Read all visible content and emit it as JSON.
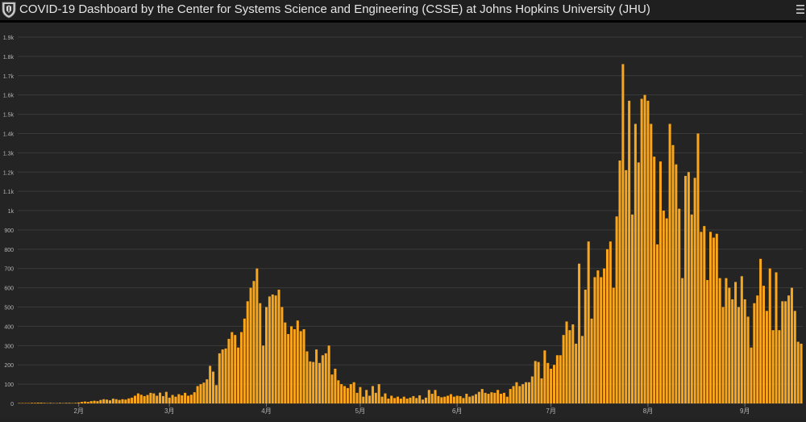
{
  "header": {
    "title": "COVID-19 Dashboard by the Center for Systems Science and Engineering (CSSE) at Johns Hopkins University (JHU)"
  },
  "colors": {
    "bar": "#f9a61c",
    "grid": "#3a3a3a",
    "axis_text": "#b5b5b5",
    "background": "#242424"
  },
  "chart_data": {
    "type": "bar",
    "grid": true,
    "ylim": [
      0,
      1900
    ],
    "y_ticks": [
      0,
      100,
      200,
      300,
      400,
      500,
      600,
      700,
      800,
      900,
      1000,
      1100,
      1200,
      1300,
      1400,
      1500,
      1600,
      1700,
      1800,
      1900
    ],
    "y_tick_labels": [
      "0",
      "100",
      "200",
      "300",
      "400",
      "500",
      "600",
      "700",
      "800",
      "900",
      "1k",
      "1.1k",
      "1.2k",
      "1.3k",
      "1.4k",
      "1.5k",
      "1.6k",
      "1.7k",
      "1.8k",
      "1.9k"
    ],
    "x_tick_labels": [
      {
        "label": "2月",
        "day": 19
      },
      {
        "label": "3月",
        "day": 48
      },
      {
        "label": "4月",
        "day": 79
      },
      {
        "label": "5月",
        "day": 109
      },
      {
        "label": "6月",
        "day": 140
      },
      {
        "label": "7月",
        "day": 170
      },
      {
        "label": "8月",
        "day": 201
      },
      {
        "label": "9月",
        "day": 232
      }
    ],
    "values": [
      2,
      2,
      2,
      2,
      3,
      3,
      4,
      4,
      3,
      2,
      3,
      2,
      2,
      3,
      2,
      3,
      3,
      2,
      3,
      5,
      8,
      10,
      8,
      12,
      14,
      12,
      18,
      22,
      20,
      16,
      25,
      22,
      18,
      22,
      20,
      26,
      30,
      40,
      52,
      45,
      38,
      44,
      55,
      52,
      40,
      56,
      38,
      60,
      30,
      44,
      35,
      48,
      42,
      55,
      40,
      45,
      58,
      90,
      100,
      108,
      125,
      195,
      165,
      95,
      260,
      280,
      285,
      335,
      370,
      355,
      290,
      370,
      440,
      530,
      600,
      635,
      700,
      520,
      300,
      500,
      555,
      565,
      560,
      590,
      500,
      420,
      360,
      400,
      385,
      430,
      375,
      385,
      270,
      218,
      215,
      280,
      210,
      250,
      260,
      300,
      150,
      180,
      120,
      100,
      90,
      80,
      100,
      110,
      55,
      85,
      35,
      70,
      40,
      90,
      55,
      100,
      35,
      52,
      25,
      40,
      28,
      35,
      25,
      35,
      25,
      30,
      38,
      28,
      42,
      20,
      30,
      70,
      50,
      70,
      38,
      32,
      35,
      40,
      48,
      35,
      40,
      38,
      28,
      50,
      35,
      40,
      48,
      60,
      75,
      55,
      50,
      58,
      55,
      70,
      50,
      55,
      35,
      75,
      90,
      110,
      90,
      100,
      110,
      110,
      140,
      220,
      215,
      130,
      275,
      210,
      180,
      200,
      250,
      250,
      355,
      425,
      380,
      410,
      310,
      725,
      350,
      590,
      840,
      440,
      655,
      690,
      655,
      700,
      800,
      840,
      600,
      970,
      1260,
      1760,
      1210,
      1570,
      980,
      1450,
      1250,
      1580,
      1600,
      1570,
      1450,
      1280,
      825,
      1255,
      1000,
      960,
      1450,
      1340,
      1240,
      1010,
      650,
      1180,
      1200,
      980,
      1170,
      1400,
      890,
      920,
      640,
      890,
      860,
      880,
      650,
      500,
      650,
      600,
      540,
      630,
      500,
      660,
      540,
      450,
      290,
      520,
      560,
      750,
      610,
      480,
      700,
      380,
      680,
      380,
      530,
      530,
      560,
      600,
      480,
      320,
      310
    ]
  }
}
